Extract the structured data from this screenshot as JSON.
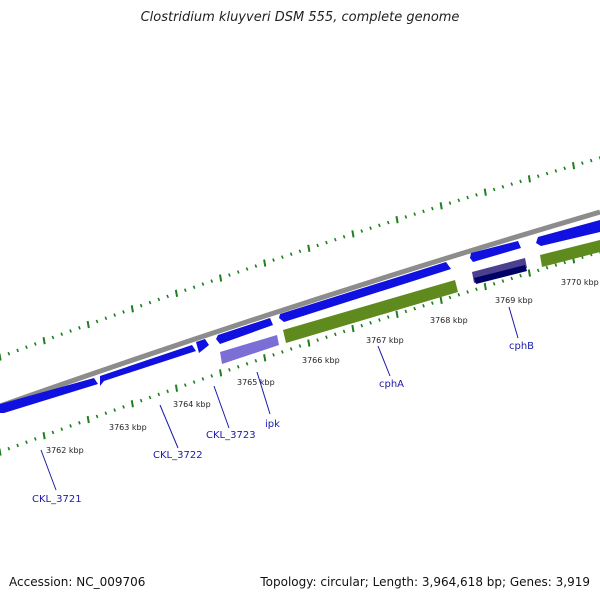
{
  "title": "Clostridium kluyveri DSM 555, complete genome",
  "footer": {
    "accession": "Accession: NC_009706",
    "summary": "Topology: circular; Length: 3,964,618 bp; Genes: 3,919"
  },
  "colors": {
    "backbone": "#8c8c8c",
    "cds": "#1010e0",
    "cds_dark": "#000066",
    "gene_olive": "#5f8a1e",
    "gene_purple": "#7b6fd6",
    "gene_purple_dark": "#4b3f8f",
    "tick": "#1f7f1f",
    "label": "#1a1aaa"
  },
  "kbp_labels": [
    "3762 kbp",
    "3763 kbp",
    "3764 kbp",
    "3765 kbp",
    "3766 kbp",
    "3767 kbp",
    "3768 kbp",
    "3769 kbp",
    "3770 kbp"
  ],
  "genes": [
    {
      "name": "CKL_3721"
    },
    {
      "name": "CKL_3722"
    },
    {
      "name": "CKL_3723"
    },
    {
      "name": "ipk"
    },
    {
      "name": "cphA"
    },
    {
      "name": "cphB"
    }
  ]
}
